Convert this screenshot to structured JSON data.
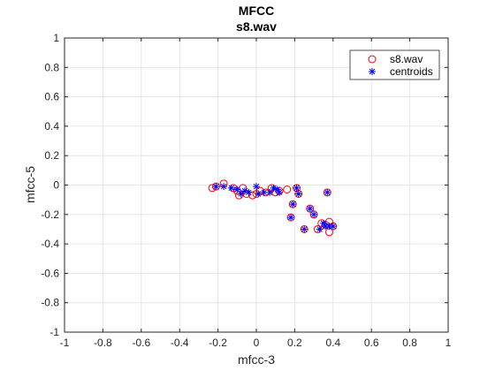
{
  "chart_data": {
    "type": "scatter",
    "title": "MFCC",
    "subtitle": "s8.wav",
    "xlabel": "mfcc-3",
    "ylabel": "mfcc-5",
    "xlim": [
      -1,
      1
    ],
    "ylim": [
      -1,
      1
    ],
    "xticks": [
      -1,
      -0.8,
      -0.6,
      -0.4,
      -0.2,
      0,
      0.2,
      0.4,
      0.6,
      0.8,
      1
    ],
    "xtick_labels": [
      "-1",
      "-0.8",
      "-0.6",
      "-0.4",
      "-0.2",
      "0",
      "0.2",
      "0.4",
      "0.6",
      "0.8",
      "1"
    ],
    "yticks": [
      -1,
      -0.8,
      -0.6,
      -0.4,
      -0.2,
      0,
      0.2,
      0.4,
      0.6,
      0.8,
      1
    ],
    "ytick_labels": [
      "-1",
      "-0.8",
      "-0.6",
      "-0.4",
      "-0.2",
      "0",
      "0.2",
      "0.4",
      "0.6",
      "0.8",
      "1"
    ],
    "grid": true,
    "legend_position": "top-right",
    "series": [
      {
        "name": "s8.wav",
        "marker": "circle",
        "color": "#ff0000",
        "points": [
          [
            -0.23,
            -0.02
          ],
          [
            -0.17,
            0.01
          ],
          [
            -0.21,
            -0.01
          ],
          [
            -0.12,
            -0.02
          ],
          [
            -0.1,
            -0.04
          ],
          [
            -0.07,
            -0.02
          ],
          [
            -0.09,
            -0.07
          ],
          [
            -0.05,
            -0.06
          ],
          [
            -0.02,
            -0.07
          ],
          [
            0.0,
            -0.06
          ],
          [
            0.02,
            -0.04
          ],
          [
            0.05,
            -0.05
          ],
          [
            0.08,
            -0.02
          ],
          [
            0.1,
            -0.05
          ],
          [
            0.12,
            -0.04
          ],
          [
            0.16,
            -0.03
          ],
          [
            0.21,
            -0.02
          ],
          [
            0.22,
            -0.06
          ],
          [
            0.19,
            -0.13
          ],
          [
            0.18,
            -0.22
          ],
          [
            0.25,
            -0.3
          ],
          [
            0.28,
            -0.16
          ],
          [
            0.3,
            -0.2
          ],
          [
            0.32,
            -0.3
          ],
          [
            0.34,
            -0.26
          ],
          [
            0.36,
            -0.27
          ],
          [
            0.38,
            -0.25
          ],
          [
            0.38,
            -0.32
          ],
          [
            0.4,
            -0.28
          ],
          [
            0.37,
            -0.05
          ]
        ]
      },
      {
        "name": "centroids",
        "marker": "asterisk",
        "color": "#0000ff",
        "points": [
          [
            -0.21,
            -0.01
          ],
          [
            -0.17,
            -0.01
          ],
          [
            -0.13,
            -0.02
          ],
          [
            -0.1,
            -0.03
          ],
          [
            -0.08,
            -0.06
          ],
          [
            -0.06,
            -0.04
          ],
          [
            -0.04,
            -0.05
          ],
          [
            0.0,
            -0.01
          ],
          [
            0.01,
            -0.06
          ],
          [
            0.04,
            -0.05
          ],
          [
            0.07,
            -0.05
          ],
          [
            0.09,
            -0.02
          ],
          [
            0.12,
            -0.05
          ],
          [
            0.11,
            -0.03
          ],
          [
            0.21,
            -0.02
          ],
          [
            0.22,
            -0.06
          ],
          [
            0.19,
            -0.13
          ],
          [
            0.18,
            -0.22
          ],
          [
            0.25,
            -0.3
          ],
          [
            0.28,
            -0.16
          ],
          [
            0.3,
            -0.2
          ],
          [
            0.33,
            -0.3
          ],
          [
            0.35,
            -0.26
          ],
          [
            0.36,
            -0.28
          ],
          [
            0.38,
            -0.28
          ],
          [
            0.4,
            -0.28
          ],
          [
            0.37,
            -0.05
          ]
        ]
      }
    ]
  }
}
